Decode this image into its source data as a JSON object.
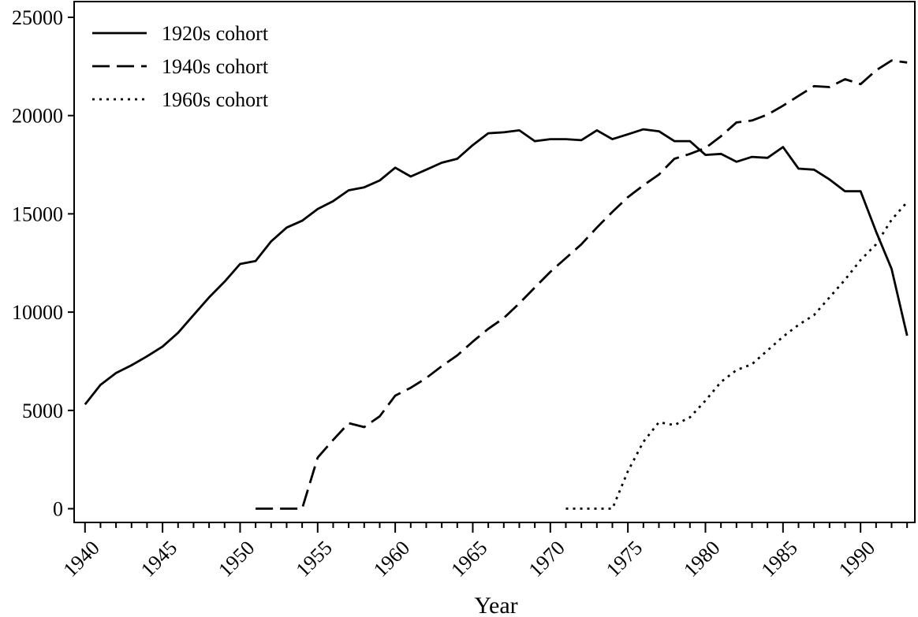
{
  "chart_data": {
    "type": "line",
    "title": "",
    "xlabel": "Year",
    "ylabel": "",
    "xlim": [
      1939.3,
      1993.5
    ],
    "ylim": [
      -700,
      25800
    ],
    "xticks_major": [
      1940,
      1945,
      1950,
      1955,
      1960,
      1965,
      1970,
      1975,
      1980,
      1985,
      1990
    ],
    "xtick_labels": [
      "1940",
      "1945",
      "1950",
      "1955",
      "1960",
      "1965",
      "1970",
      "1975",
      "1980",
      "1985",
      "1990"
    ],
    "yticks": [
      0,
      5000,
      10000,
      15000,
      20000,
      25000
    ],
    "ytick_labels": [
      "0",
      "5000",
      "10000",
      "15000",
      "20000",
      "25000"
    ],
    "grid": false,
    "legend_position": "top-left",
    "series": [
      {
        "name": "1920s cohort",
        "style": "solid",
        "x": [
          1940,
          1941,
          1942,
          1943,
          1944,
          1945,
          1946,
          1947,
          1948,
          1949,
          1950,
          1951,
          1952,
          1953,
          1954,
          1955,
          1956,
          1957,
          1958,
          1959,
          1960,
          1961,
          1962,
          1963,
          1964,
          1965,
          1966,
          1967,
          1968,
          1969,
          1970,
          1971,
          1972,
          1973,
          1974,
          1975,
          1976,
          1977,
          1978,
          1979,
          1980,
          1981,
          1982,
          1983,
          1984,
          1985,
          1986,
          1987,
          1988,
          1989,
          1990,
          1991,
          1992,
          1993
        ],
        "y": [
          5300,
          6300,
          6900,
          7300,
          7750,
          8250,
          8950,
          9850,
          10750,
          11550,
          12450,
          12600,
          13600,
          14300,
          14650,
          15250,
          15650,
          16200,
          16350,
          16700,
          17350,
          16900,
          17250,
          17600,
          17800,
          18500,
          19100,
          19150,
          19250,
          18700,
          18800,
          18800,
          18750,
          19250,
          18800,
          19050,
          19300,
          19200,
          18700,
          18700,
          18000,
          18050,
          17650,
          17900,
          17850,
          18400,
          17300,
          17250,
          16750,
          16150,
          16150,
          14100,
          12200,
          8800
        ]
      },
      {
        "name": "1940s cohort",
        "style": "dashed",
        "x": [
          1951,
          1952,
          1953,
          1954,
          1955,
          1956,
          1957,
          1958,
          1959,
          1960,
          1961,
          1962,
          1963,
          1964,
          1965,
          1966,
          1967,
          1968,
          1969,
          1970,
          1971,
          1972,
          1973,
          1974,
          1975,
          1976,
          1977,
          1978,
          1979,
          1980,
          1981,
          1982,
          1983,
          1984,
          1985,
          1986,
          1987,
          1988,
          1989,
          1990,
          1991,
          1992,
          1993
        ],
        "y": [
          0,
          0,
          0,
          0,
          2600,
          3500,
          4350,
          4150,
          4700,
          5750,
          6150,
          6650,
          7250,
          7800,
          8500,
          9150,
          9700,
          10450,
          11250,
          12050,
          12750,
          13450,
          14300,
          15100,
          15850,
          16450,
          17000,
          17800,
          18050,
          18350,
          18950,
          19650,
          19750,
          20050,
          20500,
          21000,
          21500,
          21450,
          21850,
          21600,
          22300,
          22800,
          22700
        ]
      },
      {
        "name": "1960s cohort",
        "style": "dotted",
        "x": [
          1971,
          1972,
          1973,
          1974,
          1975,
          1976,
          1977,
          1978,
          1979,
          1980,
          1981,
          1982,
          1983,
          1984,
          1985,
          1986,
          1987,
          1988,
          1989,
          1990,
          1991,
          1992,
          1993
        ],
        "y": [
          0,
          0,
          0,
          0,
          1900,
          3400,
          4400,
          4250,
          4650,
          5500,
          6450,
          7050,
          7350,
          8050,
          8750,
          9350,
          9850,
          10750,
          11650,
          12650,
          13450,
          14700,
          15600
        ]
      }
    ]
  }
}
